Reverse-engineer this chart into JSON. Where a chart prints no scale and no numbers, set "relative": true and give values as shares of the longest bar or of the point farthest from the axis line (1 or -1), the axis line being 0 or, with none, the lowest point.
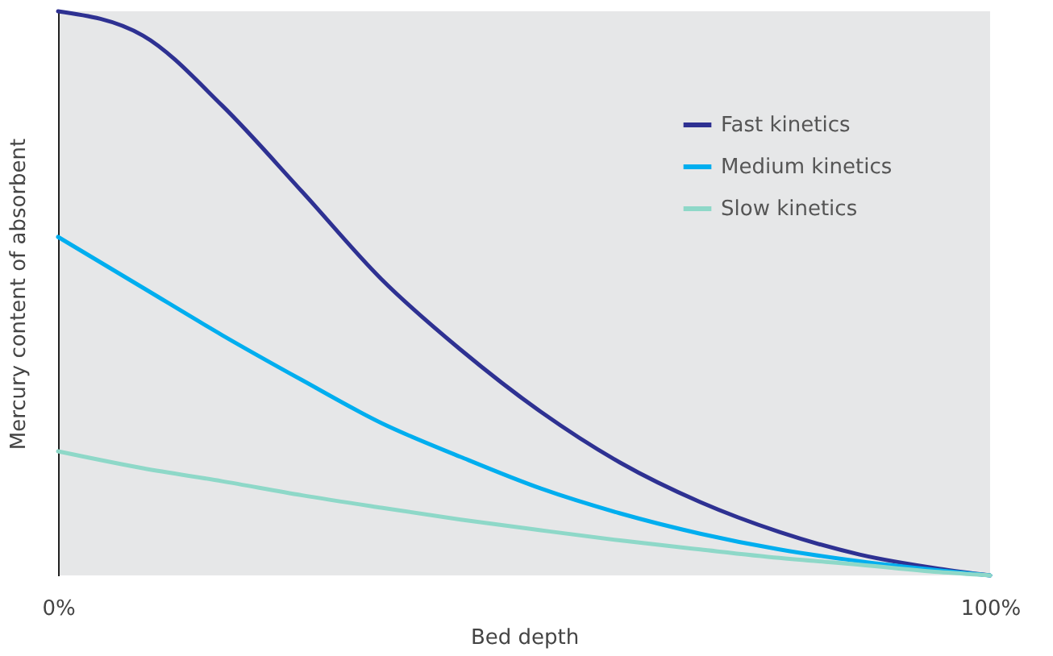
{
  "chart_data": {
    "type": "line",
    "relative": true,
    "xlabel": "Bed depth",
    "ylabel": "Mercury content of absorbent",
    "x": [
      0,
      9.1,
      17.6,
      26.2,
      34.7,
      43.2,
      51.8,
      60.3,
      68.9,
      77.4,
      86.0,
      94.5,
      100
    ],
    "xlim": [
      0,
      100
    ],
    "xticks": [
      {
        "value": 0,
        "label": "0%"
      },
      {
        "value": 100,
        "label": "100%"
      }
    ],
    "legend": "top right",
    "grid": false,
    "marker": "none",
    "line_style": "solid",
    "series": [
      {
        "name": "Fast kinetics",
        "color": "#2e3192",
        "values": [
          1,
          0.957,
          0.833,
          0.68,
          0.525,
          0.4,
          0.29,
          0.2,
          0.13,
          0.077,
          0.037,
          0.012,
          0
        ]
      },
      {
        "name": "Medium kinetics",
        "color": "#00aeef",
        "values": [
          0.6,
          0.51,
          0.426,
          0.346,
          0.27,
          0.21,
          0.154,
          0.11,
          0.074,
          0.046,
          0.025,
          0.009,
          0
        ]
      },
      {
        "name": "Slow kinetics",
        "color": "#8ed8c8",
        "values": [
          0.22,
          0.19,
          0.167,
          0.142,
          0.12,
          0.099,
          0.08,
          0.062,
          0.046,
          0.031,
          0.019,
          0.006,
          0
        ]
      }
    ]
  }
}
